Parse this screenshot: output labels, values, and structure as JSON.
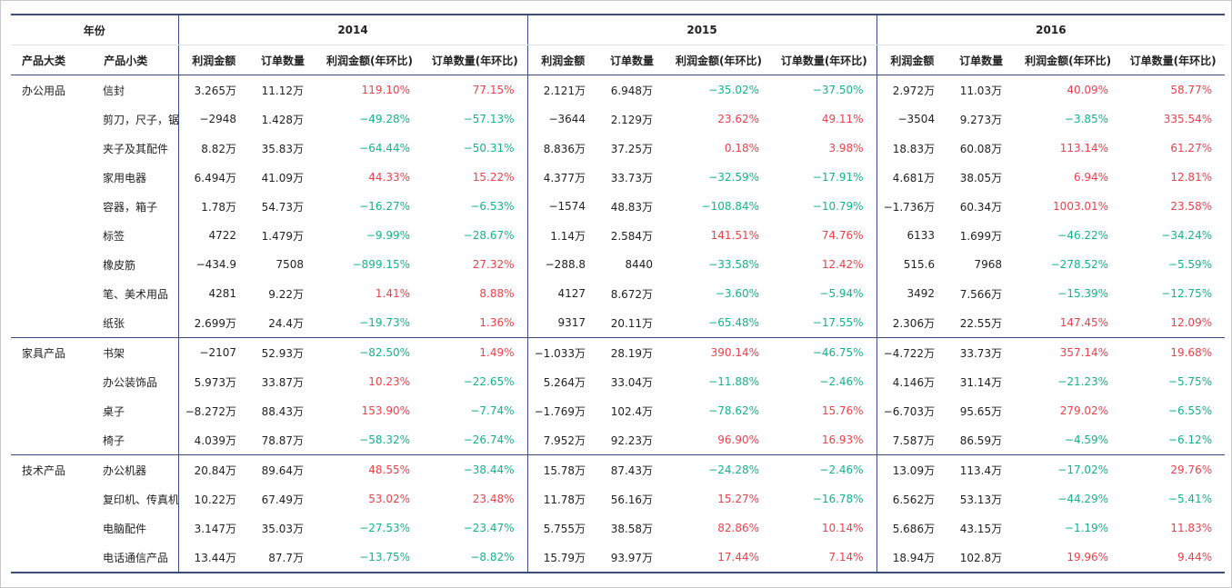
{
  "chart_data": {
    "type": "table",
    "header": {
      "year_label": "年份",
      "years": [
        "2014",
        "2015",
        "2016"
      ],
      "category_label": "产品大类",
      "subcategory_label": "产品小类",
      "metric_labels": [
        "利润金额",
        "订单数量",
        "利润金额(年环比)",
        "订单数量(年环比)"
      ]
    },
    "colors": {
      "increase": "#e8424a",
      "decrease": "#14b38a",
      "rule": "#3c4d7a"
    },
    "groups": [
      {
        "category": "办公用品",
        "rows": [
          {
            "sub": "信封",
            "y": [
              [
                "3.265万",
                "11.12万",
                "119.10%",
                "77.15%"
              ],
              [
                "2.121万",
                "6.948万",
                "−35.02%",
                "−37.50%"
              ],
              [
                "2.972万",
                "11.03万",
                "40.09%",
                "58.77%"
              ]
            ]
          },
          {
            "sub": "剪刀，尺子，锯",
            "y": [
              [
                "−2948",
                "1.428万",
                "−49.28%",
                "−57.13%"
              ],
              [
                "−3644",
                "2.129万",
                "23.62%",
                "49.11%"
              ],
              [
                "−3504",
                "9.273万",
                "−3.85%",
                "335.54%"
              ]
            ]
          },
          {
            "sub": "夹子及其配件",
            "y": [
              [
                "8.82万",
                "35.83万",
                "−64.44%",
                "−50.31%"
              ],
              [
                "8.836万",
                "37.25万",
                "0.18%",
                "3.98%"
              ],
              [
                "18.83万",
                "60.08万",
                "113.14%",
                "61.27%"
              ]
            ]
          },
          {
            "sub": "家用电器",
            "y": [
              [
                "6.494万",
                "41.09万",
                "44.33%",
                "15.22%"
              ],
              [
                "4.377万",
                "33.73万",
                "−32.59%",
                "−17.91%"
              ],
              [
                "4.681万",
                "38.05万",
                "6.94%",
                "12.81%"
              ]
            ]
          },
          {
            "sub": "容器，箱子",
            "y": [
              [
                "1.78万",
                "54.73万",
                "−16.27%",
                "−6.53%"
              ],
              [
                "−1574",
                "48.83万",
                "−108.84%",
                "−10.79%"
              ],
              [
                "−1.736万",
                "60.34万",
                "1003.01%",
                "23.58%"
              ]
            ]
          },
          {
            "sub": "标签",
            "y": [
              [
                "4722",
                "1.479万",
                "−9.99%",
                "−28.67%"
              ],
              [
                "1.14万",
                "2.584万",
                "141.51%",
                "74.76%"
              ],
              [
                "6133",
                "1.699万",
                "−46.22%",
                "−34.24%"
              ]
            ]
          },
          {
            "sub": "橡皮筋",
            "y": [
              [
                "−434.9",
                "7508",
                "−899.15%",
                "27.32%"
              ],
              [
                "−288.8",
                "8440",
                "−33.58%",
                "12.42%"
              ],
              [
                "515.6",
                "7968",
                "−278.52%",
                "−5.59%"
              ]
            ]
          },
          {
            "sub": "笔、美术用品",
            "y": [
              [
                "4281",
                "9.22万",
                "1.41%",
                "8.88%"
              ],
              [
                "4127",
                "8.672万",
                "−3.60%",
                "−5.94%"
              ],
              [
                "3492",
                "7.566万",
                "−15.39%",
                "−12.75%"
              ]
            ]
          },
          {
            "sub": "纸张",
            "y": [
              [
                "2.699万",
                "24.4万",
                "−19.73%",
                "1.36%"
              ],
              [
                "9317",
                "20.11万",
                "−65.48%",
                "−17.55%"
              ],
              [
                "2.306万",
                "22.55万",
                "147.45%",
                "12.09%"
              ]
            ]
          }
        ]
      },
      {
        "category": "家具产品",
        "rows": [
          {
            "sub": "书架",
            "y": [
              [
                "−2107",
                "52.93万",
                "−82.50%",
                "1.49%"
              ],
              [
                "−1.033万",
                "28.19万",
                "390.14%",
                "−46.75%"
              ],
              [
                "−4.722万",
                "33.73万",
                "357.14%",
                "19.68%"
              ]
            ]
          },
          {
            "sub": "办公装饰品",
            "y": [
              [
                "5.973万",
                "33.87万",
                "10.23%",
                "−22.65%"
              ],
              [
                "5.264万",
                "33.04万",
                "−11.88%",
                "−2.46%"
              ],
              [
                "4.146万",
                "31.14万",
                "−21.23%",
                "−5.75%"
              ]
            ]
          },
          {
            "sub": "桌子",
            "y": [
              [
                "−8.272万",
                "88.43万",
                "153.90%",
                "−7.74%"
              ],
              [
                "−1.769万",
                "102.4万",
                "−78.62%",
                "15.76%"
              ],
              [
                "−6.703万",
                "95.65万",
                "279.02%",
                "−6.55%"
              ]
            ]
          },
          {
            "sub": "椅子",
            "y": [
              [
                "4.039万",
                "78.87万",
                "−58.32%",
                "−26.74%"
              ],
              [
                "7.952万",
                "92.23万",
                "96.90%",
                "16.93%"
              ],
              [
                "7.587万",
                "86.59万",
                "−4.59%",
                "−6.12%"
              ]
            ]
          }
        ]
      },
      {
        "category": "技术产品",
        "rows": [
          {
            "sub": "办公机器",
            "y": [
              [
                "20.84万",
                "89.64万",
                "48.55%",
                "−38.44%"
              ],
              [
                "15.78万",
                "87.43万",
                "−24.28%",
                "−2.46%"
              ],
              [
                "13.09万",
                "113.4万",
                "−17.02%",
                "29.76%"
              ]
            ]
          },
          {
            "sub": "复印机、传真机",
            "y": [
              [
                "10.22万",
                "67.49万",
                "53.02%",
                "23.48%"
              ],
              [
                "11.78万",
                "56.16万",
                "15.27%",
                "−16.78%"
              ],
              [
                "6.562万",
                "53.13万",
                "−44.29%",
                "−5.41%"
              ]
            ]
          },
          {
            "sub": "电脑配件",
            "y": [
              [
                "3.147万",
                "35.03万",
                "−27.53%",
                "−23.47%"
              ],
              [
                "5.755万",
                "38.58万",
                "82.86%",
                "10.14%"
              ],
              [
                "5.686万",
                "43.15万",
                "−1.19%",
                "11.83%"
              ]
            ]
          },
          {
            "sub": "电话通信产品",
            "y": [
              [
                "13.44万",
                "87.7万",
                "−13.75%",
                "−8.82%"
              ],
              [
                "15.79万",
                "93.97万",
                "17.44%",
                "7.14%"
              ],
              [
                "18.94万",
                "102.8万",
                "19.96%",
                "9.44%"
              ]
            ]
          }
        ]
      }
    ]
  }
}
